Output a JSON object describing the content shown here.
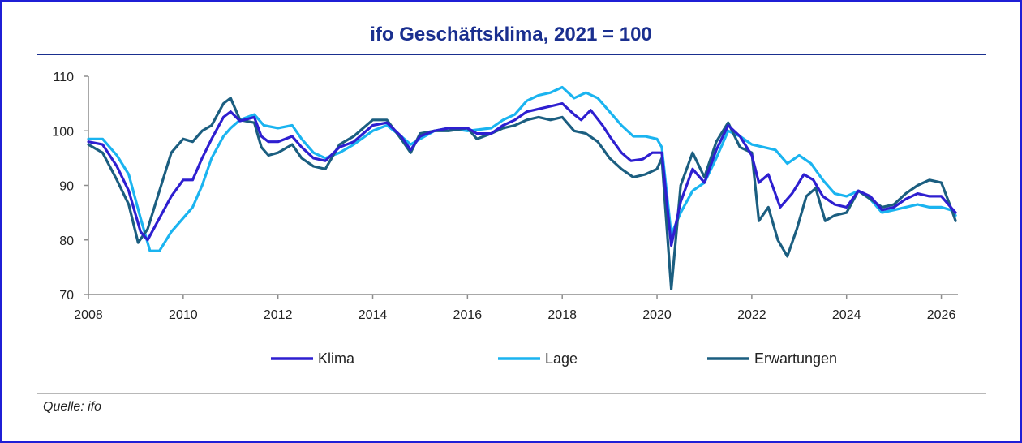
{
  "title": "ifo Geschäftsklima, 2021 = 100",
  "source": "Quelle: ifo",
  "chart_data": {
    "type": "line",
    "title": "ifo Geschäftsklima, 2021 = 100",
    "xlabel": "",
    "ylabel": "",
    "xlim": [
      2008,
      2026.35
    ],
    "ylim": [
      70,
      110
    ],
    "x_ticks": [
      2008,
      2010,
      2012,
      2014,
      2016,
      2018,
      2020,
      2022,
      2024,
      2026
    ],
    "x_tick_labels": [
      "2008",
      "2010",
      "2012",
      "2014",
      "2016",
      "2018",
      "2020",
      "2022",
      "2024",
      "2026"
    ],
    "y_ticks": [
      70,
      80,
      90,
      100,
      110
    ],
    "y_tick_labels": [
      "70",
      "80",
      "90",
      "100",
      "110"
    ],
    "legend_position": "bottom",
    "series": [
      {
        "name": "Klima",
        "color": "#2e1fd0",
        "points": [
          [
            2008.0,
            98.0
          ],
          [
            2008.3,
            97.5
          ],
          [
            2008.6,
            93.5
          ],
          [
            2008.85,
            89.0
          ],
          [
            2009.1,
            81.5
          ],
          [
            2009.25,
            80.0
          ],
          [
            2009.5,
            84.0
          ],
          [
            2009.75,
            88.0
          ],
          [
            2010.0,
            91.0
          ],
          [
            2010.2,
            91.0
          ],
          [
            2010.4,
            95.0
          ],
          [
            2010.6,
            98.5
          ],
          [
            2010.85,
            102.5
          ],
          [
            2011.0,
            103.5
          ],
          [
            2011.2,
            101.8
          ],
          [
            2011.5,
            102.5
          ],
          [
            2011.65,
            99.0
          ],
          [
            2011.8,
            98.0
          ],
          [
            2012.0,
            98.0
          ],
          [
            2012.3,
            99.0
          ],
          [
            2012.5,
            97.0
          ],
          [
            2012.75,
            95.0
          ],
          [
            2013.0,
            94.5
          ],
          [
            2013.3,
            97.0
          ],
          [
            2013.6,
            98.0
          ],
          [
            2014.0,
            101.0
          ],
          [
            2014.3,
            101.5
          ],
          [
            2014.6,
            99.0
          ],
          [
            2014.8,
            96.5
          ],
          [
            2015.0,
            99.0
          ],
          [
            2015.3,
            100.0
          ],
          [
            2015.6,
            100.5
          ],
          [
            2016.0,
            100.5
          ],
          [
            2016.2,
            99.5
          ],
          [
            2016.5,
            99.5
          ],
          [
            2016.75,
            101.0
          ],
          [
            2017.0,
            102.0
          ],
          [
            2017.25,
            103.5
          ],
          [
            2017.5,
            104.0
          ],
          [
            2017.75,
            104.5
          ],
          [
            2018.0,
            105.0
          ],
          [
            2018.25,
            103.0
          ],
          [
            2018.4,
            102.0
          ],
          [
            2018.6,
            103.8
          ],
          [
            2018.85,
            101.0
          ],
          [
            2019.0,
            99.0
          ],
          [
            2019.25,
            96.0
          ],
          [
            2019.45,
            94.5
          ],
          [
            2019.7,
            94.8
          ],
          [
            2019.9,
            96.0
          ],
          [
            2020.1,
            96.0
          ],
          [
            2020.3,
            79.0
          ],
          [
            2020.5,
            87.0
          ],
          [
            2020.75,
            93.0
          ],
          [
            2021.0,
            90.5
          ],
          [
            2021.25,
            96.5
          ],
          [
            2021.5,
            101.0
          ],
          [
            2021.75,
            99.0
          ],
          [
            2022.0,
            95.5
          ],
          [
            2022.15,
            90.5
          ],
          [
            2022.35,
            92.0
          ],
          [
            2022.6,
            86.0
          ],
          [
            2022.85,
            88.5
          ],
          [
            2023.1,
            92.0
          ],
          [
            2023.3,
            91.0
          ],
          [
            2023.5,
            88.0
          ],
          [
            2023.75,
            86.5
          ],
          [
            2024.0,
            86.0
          ],
          [
            2024.25,
            89.0
          ],
          [
            2024.5,
            88.0
          ],
          [
            2024.75,
            85.5
          ],
          [
            2025.0,
            86.0
          ],
          [
            2025.25,
            87.5
          ],
          [
            2025.5,
            88.5
          ],
          [
            2025.75,
            88.0
          ],
          [
            2026.0,
            88.0
          ],
          [
            2026.2,
            86.0
          ],
          [
            2026.3,
            85.0
          ]
        ]
      },
      {
        "name": "Lage",
        "color": "#1ab4f0",
        "points": [
          [
            2008.0,
            98.5
          ],
          [
            2008.3,
            98.5
          ],
          [
            2008.6,
            95.5
          ],
          [
            2008.85,
            92.0
          ],
          [
            2009.1,
            84.0
          ],
          [
            2009.3,
            78.0
          ],
          [
            2009.5,
            78.0
          ],
          [
            2009.75,
            81.5
          ],
          [
            2010.0,
            84.0
          ],
          [
            2010.2,
            86.0
          ],
          [
            2010.4,
            90.0
          ],
          [
            2010.6,
            95.0
          ],
          [
            2010.85,
            99.0
          ],
          [
            2011.0,
            100.5
          ],
          [
            2011.2,
            102.0
          ],
          [
            2011.5,
            103.0
          ],
          [
            2011.7,
            101.0
          ],
          [
            2012.0,
            100.5
          ],
          [
            2012.3,
            101.0
          ],
          [
            2012.5,
            98.5
          ],
          [
            2012.75,
            96.0
          ],
          [
            2013.0,
            95.0
          ],
          [
            2013.3,
            96.0
          ],
          [
            2013.6,
            97.5
          ],
          [
            2014.0,
            100.0
          ],
          [
            2014.3,
            101.0
          ],
          [
            2014.6,
            99.0
          ],
          [
            2014.8,
            97.5
          ],
          [
            2015.0,
            98.5
          ],
          [
            2015.3,
            100.0
          ],
          [
            2015.6,
            100.5
          ],
          [
            2016.0,
            100.0
          ],
          [
            2016.5,
            100.5
          ],
          [
            2016.75,
            102.0
          ],
          [
            2017.0,
            103.0
          ],
          [
            2017.25,
            105.5
          ],
          [
            2017.5,
            106.5
          ],
          [
            2017.75,
            107.0
          ],
          [
            2018.0,
            108.0
          ],
          [
            2018.25,
            106.0
          ],
          [
            2018.5,
            107.0
          ],
          [
            2018.75,
            106.0
          ],
          [
            2019.0,
            103.5
          ],
          [
            2019.25,
            101.0
          ],
          [
            2019.5,
            99.0
          ],
          [
            2019.75,
            99.0
          ],
          [
            2020.0,
            98.5
          ],
          [
            2020.1,
            97.0
          ],
          [
            2020.3,
            81.0
          ],
          [
            2020.5,
            85.0
          ],
          [
            2020.75,
            89.0
          ],
          [
            2021.0,
            90.5
          ],
          [
            2021.25,
            95.0
          ],
          [
            2021.5,
            100.0
          ],
          [
            2021.75,
            99.0
          ],
          [
            2022.0,
            97.5
          ],
          [
            2022.25,
            97.0
          ],
          [
            2022.5,
            96.5
          ],
          [
            2022.75,
            94.0
          ],
          [
            2023.0,
            95.5
          ],
          [
            2023.25,
            94.0
          ],
          [
            2023.5,
            91.0
          ],
          [
            2023.75,
            88.5
          ],
          [
            2024.0,
            88.0
          ],
          [
            2024.25,
            89.0
          ],
          [
            2024.5,
            87.5
          ],
          [
            2024.75,
            85.0
          ],
          [
            2025.0,
            85.5
          ],
          [
            2025.25,
            86.0
          ],
          [
            2025.5,
            86.5
          ],
          [
            2025.75,
            86.0
          ],
          [
            2026.0,
            86.0
          ],
          [
            2026.2,
            85.5
          ],
          [
            2026.3,
            84.5
          ]
        ]
      },
      {
        "name": "Erwartungen",
        "color": "#1b5e80",
        "points": [
          [
            2008.0,
            97.5
          ],
          [
            2008.3,
            96.0
          ],
          [
            2008.6,
            91.0
          ],
          [
            2008.85,
            86.5
          ],
          [
            2009.05,
            79.5
          ],
          [
            2009.25,
            82.0
          ],
          [
            2009.5,
            89.0
          ],
          [
            2009.75,
            96.0
          ],
          [
            2010.0,
            98.5
          ],
          [
            2010.2,
            98.0
          ],
          [
            2010.4,
            100.0
          ],
          [
            2010.6,
            101.0
          ],
          [
            2010.85,
            105.0
          ],
          [
            2011.0,
            106.0
          ],
          [
            2011.2,
            102.0
          ],
          [
            2011.5,
            101.5
          ],
          [
            2011.65,
            97.0
          ],
          [
            2011.8,
            95.5
          ],
          [
            2012.0,
            96.0
          ],
          [
            2012.3,
            97.5
          ],
          [
            2012.5,
            95.0
          ],
          [
            2012.75,
            93.5
          ],
          [
            2013.0,
            93.0
          ],
          [
            2013.3,
            97.5
          ],
          [
            2013.6,
            99.0
          ],
          [
            2014.0,
            102.0
          ],
          [
            2014.3,
            102.0
          ],
          [
            2014.6,
            98.5
          ],
          [
            2014.8,
            96.0
          ],
          [
            2015.0,
            99.5
          ],
          [
            2015.3,
            100.0
          ],
          [
            2015.6,
            100.0
          ],
          [
            2016.0,
            100.5
          ],
          [
            2016.2,
            98.5
          ],
          [
            2016.5,
            99.5
          ],
          [
            2016.75,
            100.5
          ],
          [
            2017.0,
            101.0
          ],
          [
            2017.25,
            102.0
          ],
          [
            2017.5,
            102.5
          ],
          [
            2017.75,
            102.0
          ],
          [
            2018.0,
            102.5
          ],
          [
            2018.25,
            100.0
          ],
          [
            2018.5,
            99.5
          ],
          [
            2018.75,
            98.0
          ],
          [
            2019.0,
            95.0
          ],
          [
            2019.25,
            93.0
          ],
          [
            2019.5,
            91.5
          ],
          [
            2019.75,
            92.0
          ],
          [
            2020.0,
            93.0
          ],
          [
            2020.1,
            95.0
          ],
          [
            2020.3,
            71.0
          ],
          [
            2020.5,
            90.0
          ],
          [
            2020.75,
            96.0
          ],
          [
            2021.0,
            91.5
          ],
          [
            2021.25,
            98.0
          ],
          [
            2021.5,
            101.5
          ],
          [
            2021.75,
            97.0
          ],
          [
            2022.0,
            96.0
          ],
          [
            2022.15,
            83.5
          ],
          [
            2022.35,
            86.0
          ],
          [
            2022.55,
            80.0
          ],
          [
            2022.75,
            77.0
          ],
          [
            2022.95,
            82.0
          ],
          [
            2023.15,
            88.0
          ],
          [
            2023.35,
            89.5
          ],
          [
            2023.55,
            83.5
          ],
          [
            2023.75,
            84.5
          ],
          [
            2024.0,
            85.0
          ],
          [
            2024.25,
            89.0
          ],
          [
            2024.5,
            87.5
          ],
          [
            2024.75,
            86.0
          ],
          [
            2025.0,
            86.5
          ],
          [
            2025.25,
            88.5
          ],
          [
            2025.5,
            90.0
          ],
          [
            2025.75,
            91.0
          ],
          [
            2026.0,
            90.5
          ],
          [
            2026.2,
            86.0
          ],
          [
            2026.3,
            83.5
          ]
        ]
      }
    ]
  }
}
